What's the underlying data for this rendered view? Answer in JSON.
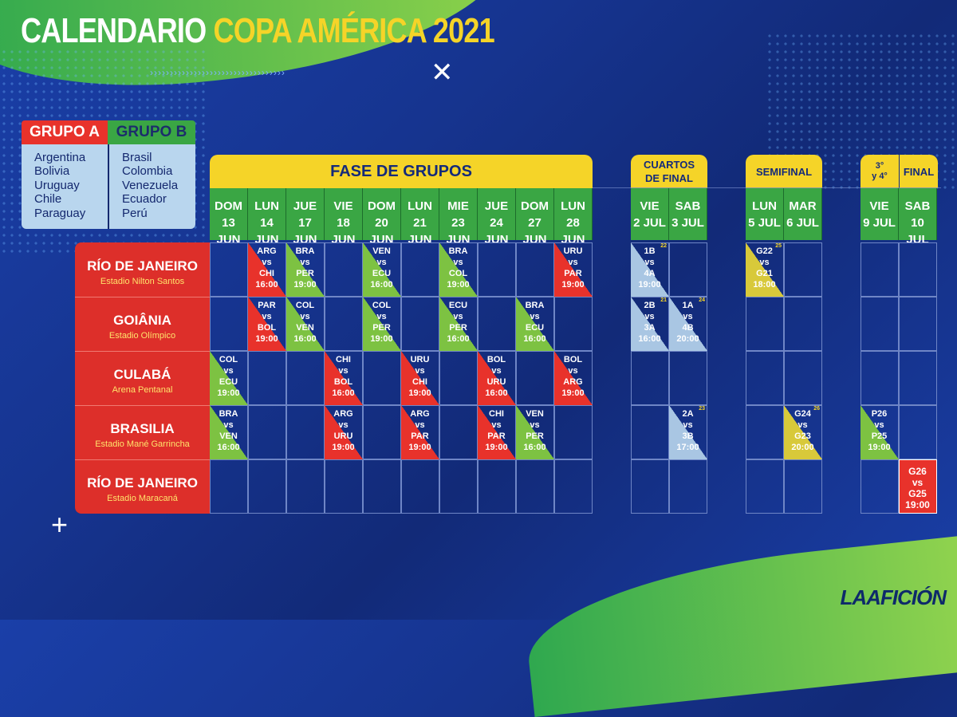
{
  "title": {
    "part1": "CALENDARIO",
    "part2": "COPA AMÉRICA 2021"
  },
  "decor": {
    "chevrons": "››››››››››››››››››››››››››››››››››",
    "x_mark": "✕",
    "plus_mark": "+"
  },
  "groups": {
    "a": {
      "label": "GRUPO A",
      "teams": [
        "Argentina",
        "Bolivia",
        "Uruguay",
        "Chile",
        "Paraguay"
      ]
    },
    "b": {
      "label": "GRUPO B",
      "teams": [
        "Brasil",
        "Colombia",
        "Venezuela",
        "Ecuador",
        "Perú"
      ]
    }
  },
  "phases": {
    "groups": "FASE DE GRUPOS",
    "quarters": [
      "CUARTOS",
      "DE FINAL"
    ],
    "semis": "SEMIFINAL",
    "third": [
      "3°",
      "y 4°"
    ],
    "final": "FINAL"
  },
  "days": [
    {
      "d": "DOM",
      "n": "13 JUN"
    },
    {
      "d": "LUN",
      "n": "14 JUN"
    },
    {
      "d": "JUE",
      "n": "17 JUN"
    },
    {
      "d": "VIE",
      "n": "18 JUN"
    },
    {
      "d": "DOM",
      "n": "20 JUN"
    },
    {
      "d": "LUN",
      "n": "21 JUN"
    },
    {
      "d": "MIE",
      "n": "23 JUN"
    },
    {
      "d": "JUE",
      "n": "24 JUN"
    },
    {
      "d": "DOM",
      "n": "27 JUN"
    },
    {
      "d": "LUN",
      "n": "28 JUN"
    },
    {
      "d": "VIE",
      "n": "2 JUL"
    },
    {
      "d": "SAB",
      "n": "3 JUL"
    },
    {
      "d": "LUN",
      "n": "5 JUL"
    },
    {
      "d": "MAR",
      "n": "6 JUL"
    },
    {
      "d": "VIE",
      "n": "9 JUL"
    },
    {
      "d": "SAB",
      "n": "10 JUL"
    }
  ],
  "venues": [
    {
      "city": "RÍO DE JANEIRO",
      "stadium": "Estadio Nilton Santos"
    },
    {
      "city": "GOIÂNIA",
      "stadium": "Estadio Olímpico"
    },
    {
      "city": "CULABÁ",
      "stadium": "Arena Pentanal"
    },
    {
      "city": "BRASILIA",
      "stadium": "Estadio Mané Garrincha"
    },
    {
      "city": "RÍO DE JANEIRO",
      "stadium": "Estadio Maracaná"
    }
  ],
  "colors": {
    "groupA": "#e8322b",
    "groupB": "#7dc242",
    "quarters": "#a9c6e3",
    "semis": "#d8c93a",
    "final": "#e8322b"
  },
  "matches": [
    {
      "row": 0,
      "col": 1,
      "home": "ARG",
      "away": "CHI",
      "time": "16:00",
      "color": "red"
    },
    {
      "row": 0,
      "col": 2,
      "home": "BRA",
      "away": "PER",
      "time": "19:00",
      "color": "green"
    },
    {
      "row": 0,
      "col": 4,
      "home": "VEN",
      "away": "ECU",
      "time": "16:00",
      "color": "green"
    },
    {
      "row": 0,
      "col": 6,
      "home": "BRA",
      "away": "COL",
      "time": "19:00",
      "color": "green"
    },
    {
      "row": 0,
      "col": 9,
      "home": "URU",
      "away": "PAR",
      "time": "19:00",
      "color": "red"
    },
    {
      "row": 0,
      "col": 10,
      "home": "1B",
      "away": "4A",
      "time": "19:00",
      "color": "blue",
      "num": "22"
    },
    {
      "row": 0,
      "col": 12,
      "home": "G22",
      "away": "G21",
      "time": "18:00",
      "color": "yellow",
      "num": "25"
    },
    {
      "row": 1,
      "col": 1,
      "home": "PAR",
      "away": "BOL",
      "time": "19:00",
      "color": "red"
    },
    {
      "row": 1,
      "col": 2,
      "home": "COL",
      "away": "VEN",
      "time": "16:00",
      "color": "green"
    },
    {
      "row": 1,
      "col": 4,
      "home": "COL",
      "away": "PER",
      "time": "19:00",
      "color": "green"
    },
    {
      "row": 1,
      "col": 6,
      "home": "ECU",
      "away": "PER",
      "time": "16:00",
      "color": "green"
    },
    {
      "row": 1,
      "col": 8,
      "home": "BRA",
      "away": "ECU",
      "time": "16:00",
      "color": "green"
    },
    {
      "row": 1,
      "col": 10,
      "home": "2B",
      "away": "3A",
      "time": "16:00",
      "color": "blue",
      "num": "21"
    },
    {
      "row": 1,
      "col": 11,
      "home": "1A",
      "away": "4B",
      "time": "20:00",
      "color": "blue",
      "num": "24"
    },
    {
      "row": 2,
      "col": 0,
      "home": "COL",
      "away": "ECU",
      "time": "19:00",
      "color": "green"
    },
    {
      "row": 2,
      "col": 3,
      "home": "CHI",
      "away": "BOL",
      "time": "16:00",
      "color": "red"
    },
    {
      "row": 2,
      "col": 5,
      "home": "URU",
      "away": "CHI",
      "time": "19:00",
      "color": "red"
    },
    {
      "row": 2,
      "col": 7,
      "home": "BOL",
      "away": "URU",
      "time": "16:00",
      "color": "red"
    },
    {
      "row": 2,
      "col": 9,
      "home": "BOL",
      "away": "ARG",
      "time": "19:00",
      "color": "red"
    },
    {
      "row": 3,
      "col": 0,
      "home": "BRA",
      "away": "VEN",
      "time": "16:00",
      "color": "green"
    },
    {
      "row": 3,
      "col": 3,
      "home": "ARG",
      "away": "URU",
      "time": "19:00",
      "color": "red"
    },
    {
      "row": 3,
      "col": 5,
      "home": "ARG",
      "away": "PAR",
      "time": "19:00",
      "color": "red"
    },
    {
      "row": 3,
      "col": 7,
      "home": "CHI",
      "away": "PAR",
      "time": "19:00",
      "color": "red"
    },
    {
      "row": 3,
      "col": 8,
      "home": "VEN",
      "away": "PER",
      "time": "16:00",
      "color": "green"
    },
    {
      "row": 3,
      "col": 11,
      "home": "2A",
      "away": "3B",
      "time": "17:00",
      "color": "blue",
      "num": "23"
    },
    {
      "row": 3,
      "col": 13,
      "home": "G24",
      "away": "G23",
      "time": "20:00",
      "color": "yellow",
      "num": "26"
    },
    {
      "row": 3,
      "col": 14,
      "home": "P26",
      "away": "P25",
      "time": "19:00",
      "color": "green"
    },
    {
      "row": 4,
      "col": 15,
      "home": "G26",
      "away": "G25",
      "time": "19:00",
      "color": "final"
    }
  ],
  "vs_label": "vs",
  "logo": {
    "la": "LA",
    "af": "AFICIÓN"
  }
}
